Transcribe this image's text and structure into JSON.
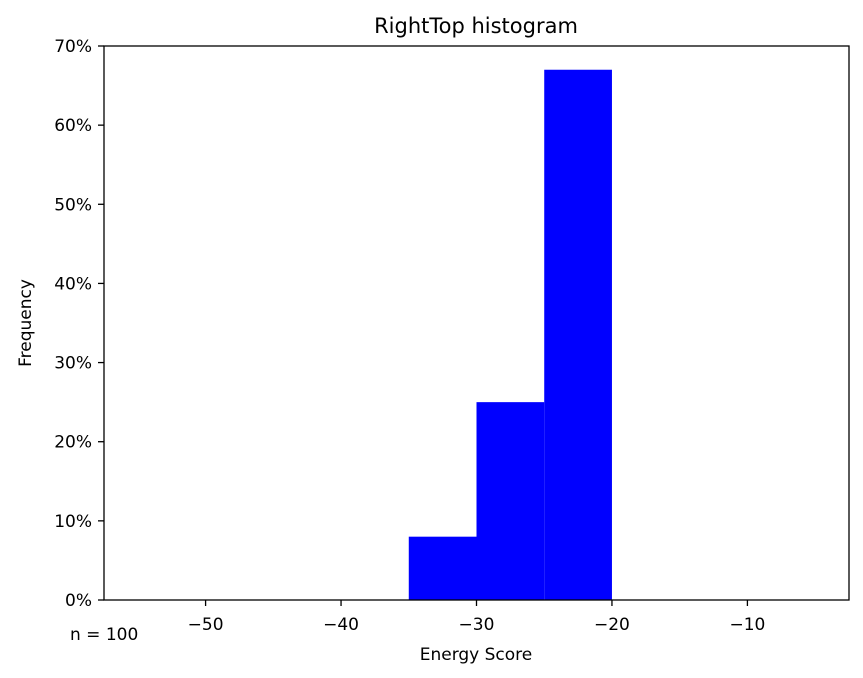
{
  "chart_data": {
    "type": "bar",
    "title": "RightTop histogram",
    "xlabel": "Energy Score",
    "ylabel": "Frequency",
    "annotation": "n = 100",
    "xlim": [
      -57.5,
      -2.5
    ],
    "ylim": [
      0,
      70
    ],
    "x_ticks": [
      -50,
      -40,
      -30,
      -20,
      -10
    ],
    "x_tick_labels": [
      "−50",
      "−40",
      "−30",
      "−20",
      "−10"
    ],
    "y_ticks": [
      0,
      10,
      20,
      30,
      40,
      50,
      60,
      70
    ],
    "y_tick_labels": [
      "0%",
      "10%",
      "20%",
      "30%",
      "40%",
      "50%",
      "60%",
      "70%"
    ],
    "bins": [
      {
        "x0": -35,
        "x1": -30,
        "value": 8
      },
      {
        "x0": -30,
        "x1": -25,
        "value": 25
      },
      {
        "x0": -25,
        "x1": -20,
        "value": 67
      }
    ],
    "bar_color": "#0000ff",
    "grid": false
  }
}
